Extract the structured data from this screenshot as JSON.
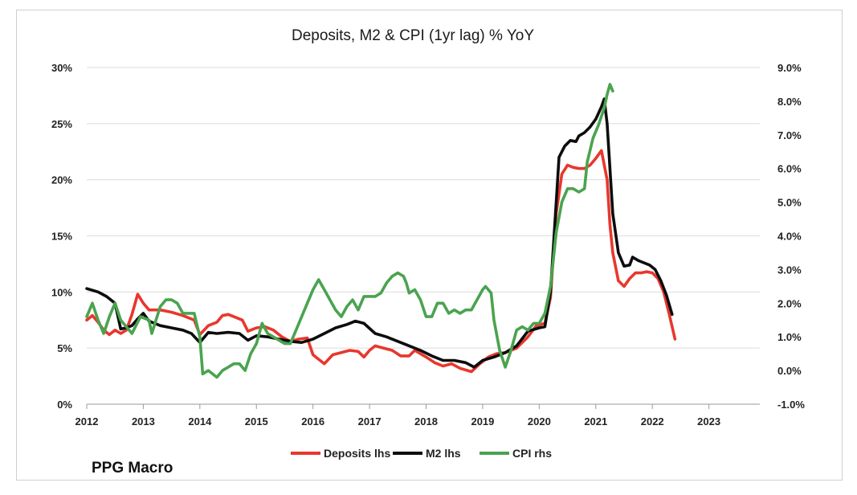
{
  "credit": "PPG Macro",
  "chart_data": {
    "type": "line",
    "title": "Deposits, M2 & CPI (1yr lag) % YoY",
    "x_ticks": [
      "2012",
      "2013",
      "2014",
      "2015",
      "2016",
      "2017",
      "2018",
      "2019",
      "2020",
      "2021",
      "2022",
      "2023"
    ],
    "xlim": [
      2012,
      2023.9
    ],
    "y_left": {
      "lim": [
        0,
        30
      ],
      "ticks": [
        "0%",
        "5%",
        "10%",
        "15%",
        "20%",
        "25%",
        "30%"
      ]
    },
    "y_right": {
      "lim": [
        -1,
        9
      ],
      "ticks": [
        "-1.0%",
        "0.0%",
        "1.0%",
        "2.0%",
        "3.0%",
        "4.0%",
        "5.0%",
        "6.0%",
        "7.0%",
        "8.0%",
        "9.0%"
      ]
    },
    "grid": true,
    "legend_position": "bottom-center",
    "series": [
      {
        "name": "Deposits lhs",
        "axis": "left",
        "color": "#e8372d",
        "points": [
          [
            2012.0,
            7.5
          ],
          [
            2012.1,
            7.9
          ],
          [
            2012.2,
            7.3
          ],
          [
            2012.3,
            6.6
          ],
          [
            2012.4,
            6.2
          ],
          [
            2012.5,
            6.6
          ],
          [
            2012.6,
            6.3
          ],
          [
            2012.7,
            6.6
          ],
          [
            2012.8,
            8.0
          ],
          [
            2012.9,
            9.8
          ],
          [
            2013.0,
            9.0
          ],
          [
            2013.1,
            8.4
          ],
          [
            2013.3,
            8.4
          ],
          [
            2013.5,
            8.2
          ],
          [
            2013.7,
            7.9
          ],
          [
            2013.9,
            7.5
          ],
          [
            2014.0,
            6.2
          ],
          [
            2014.15,
            7.0
          ],
          [
            2014.3,
            7.3
          ],
          [
            2014.4,
            7.9
          ],
          [
            2014.5,
            8.0
          ],
          [
            2014.6,
            7.8
          ],
          [
            2014.75,
            7.5
          ],
          [
            2014.85,
            6.5
          ],
          [
            2015.0,
            6.8
          ],
          [
            2015.15,
            6.9
          ],
          [
            2015.3,
            6.6
          ],
          [
            2015.45,
            6.0
          ],
          [
            2015.6,
            5.6
          ],
          [
            2015.75,
            5.8
          ],
          [
            2015.9,
            5.9
          ],
          [
            2016.0,
            4.4
          ],
          [
            2016.1,
            4.0
          ],
          [
            2016.2,
            3.6
          ],
          [
            2016.35,
            4.4
          ],
          [
            2016.5,
            4.6
          ],
          [
            2016.65,
            4.8
          ],
          [
            2016.8,
            4.7
          ],
          [
            2016.9,
            4.2
          ],
          [
            2017.0,
            4.8
          ],
          [
            2017.1,
            5.2
          ],
          [
            2017.25,
            5.0
          ],
          [
            2017.4,
            4.8
          ],
          [
            2017.55,
            4.3
          ],
          [
            2017.7,
            4.3
          ],
          [
            2017.8,
            4.8
          ],
          [
            2018.0,
            4.2
          ],
          [
            2018.15,
            3.7
          ],
          [
            2018.3,
            3.4
          ],
          [
            2018.45,
            3.6
          ],
          [
            2018.6,
            3.2
          ],
          [
            2018.8,
            2.9
          ],
          [
            2018.95,
            3.6
          ],
          [
            2019.1,
            4.2
          ],
          [
            2019.25,
            4.5
          ],
          [
            2019.4,
            4.6
          ],
          [
            2019.6,
            5.0
          ],
          [
            2019.8,
            6.0
          ],
          [
            2019.95,
            7.0
          ],
          [
            2020.1,
            7.2
          ],
          [
            2020.2,
            9.5
          ],
          [
            2020.3,
            17.0
          ],
          [
            2020.4,
            20.5
          ],
          [
            2020.5,
            21.3
          ],
          [
            2020.6,
            21.1
          ],
          [
            2020.7,
            21.0
          ],
          [
            2020.8,
            21.0
          ],
          [
            2020.9,
            21.3
          ],
          [
            2021.0,
            21.9
          ],
          [
            2021.1,
            22.6
          ],
          [
            2021.2,
            20.0
          ],
          [
            2021.25,
            16.0
          ],
          [
            2021.3,
            13.5
          ],
          [
            2021.4,
            11.0
          ],
          [
            2021.5,
            10.5
          ],
          [
            2021.6,
            11.2
          ],
          [
            2021.7,
            11.7
          ],
          [
            2021.8,
            11.7
          ],
          [
            2021.9,
            11.8
          ],
          [
            2022.0,
            11.7
          ],
          [
            2022.1,
            11.2
          ],
          [
            2022.2,
            10.0
          ],
          [
            2022.3,
            8.0
          ],
          [
            2022.4,
            5.8
          ]
        ]
      },
      {
        "name": "M2 lhs",
        "axis": "left",
        "color": "#0d0d0d",
        "points": [
          [
            2012.0,
            10.3
          ],
          [
            2012.2,
            10.0
          ],
          [
            2012.35,
            9.6
          ],
          [
            2012.5,
            9.0
          ],
          [
            2012.6,
            6.7
          ],
          [
            2012.7,
            6.8
          ],
          [
            2012.8,
            7.0
          ],
          [
            2012.9,
            7.6
          ],
          [
            2013.0,
            8.1
          ],
          [
            2013.1,
            7.4
          ],
          [
            2013.3,
            7.0
          ],
          [
            2013.5,
            6.8
          ],
          [
            2013.7,
            6.6
          ],
          [
            2013.85,
            6.3
          ],
          [
            2014.0,
            5.5
          ],
          [
            2014.15,
            6.4
          ],
          [
            2014.3,
            6.3
          ],
          [
            2014.5,
            6.4
          ],
          [
            2014.7,
            6.3
          ],
          [
            2014.85,
            5.7
          ],
          [
            2015.0,
            6.1
          ],
          [
            2015.2,
            6.0
          ],
          [
            2015.4,
            5.8
          ],
          [
            2015.6,
            5.6
          ],
          [
            2015.8,
            5.5
          ],
          [
            2016.0,
            5.8
          ],
          [
            2016.2,
            6.3
          ],
          [
            2016.4,
            6.8
          ],
          [
            2016.6,
            7.1
          ],
          [
            2016.75,
            7.4
          ],
          [
            2016.9,
            7.2
          ],
          [
            2017.1,
            6.3
          ],
          [
            2017.3,
            6.0
          ],
          [
            2017.5,
            5.6
          ],
          [
            2017.7,
            5.2
          ],
          [
            2017.9,
            4.8
          ],
          [
            2018.1,
            4.3
          ],
          [
            2018.3,
            3.9
          ],
          [
            2018.5,
            3.9
          ],
          [
            2018.7,
            3.7
          ],
          [
            2018.85,
            3.3
          ],
          [
            2019.0,
            3.9
          ],
          [
            2019.2,
            4.2
          ],
          [
            2019.4,
            4.6
          ],
          [
            2019.6,
            5.2
          ],
          [
            2019.8,
            6.5
          ],
          [
            2020.0,
            6.8
          ],
          [
            2020.1,
            6.9
          ],
          [
            2020.2,
            10.0
          ],
          [
            2020.3,
            18.0
          ],
          [
            2020.35,
            22.0
          ],
          [
            2020.45,
            23.0
          ],
          [
            2020.55,
            23.5
          ],
          [
            2020.65,
            23.4
          ],
          [
            2020.7,
            23.9
          ],
          [
            2020.8,
            24.2
          ],
          [
            2020.9,
            24.7
          ],
          [
            2021.0,
            25.4
          ],
          [
            2021.1,
            26.5
          ],
          [
            2021.15,
            27.2
          ],
          [
            2021.2,
            25.0
          ],
          [
            2021.3,
            17.0
          ],
          [
            2021.4,
            13.5
          ],
          [
            2021.5,
            12.3
          ],
          [
            2021.6,
            12.4
          ],
          [
            2021.65,
            13.1
          ],
          [
            2021.75,
            12.8
          ],
          [
            2021.85,
            12.6
          ],
          [
            2021.95,
            12.4
          ],
          [
            2022.05,
            12.0
          ],
          [
            2022.15,
            11.0
          ],
          [
            2022.25,
            9.7
          ],
          [
            2022.35,
            8.0
          ]
        ]
      },
      {
        "name": "CPI rhs",
        "axis": "right",
        "color": "#4aa34f",
        "points": [
          [
            2012.0,
            1.6
          ],
          [
            2012.1,
            2.0
          ],
          [
            2012.2,
            1.5
          ],
          [
            2012.3,
            1.1
          ],
          [
            2012.4,
            1.6
          ],
          [
            2012.5,
            2.0
          ],
          [
            2012.6,
            1.5
          ],
          [
            2012.7,
            1.3
          ],
          [
            2012.8,
            1.1
          ],
          [
            2012.95,
            1.6
          ],
          [
            2013.1,
            1.5
          ],
          [
            2013.15,
            1.1
          ],
          [
            2013.3,
            1.9
          ],
          [
            2013.4,
            2.1
          ],
          [
            2013.5,
            2.1
          ],
          [
            2013.6,
            2.0
          ],
          [
            2013.7,
            1.7
          ],
          [
            2013.9,
            1.7
          ],
          [
            2014.0,
            1.0
          ],
          [
            2014.05,
            -0.1
          ],
          [
            2014.15,
            0.0
          ],
          [
            2014.3,
            -0.2
          ],
          [
            2014.4,
            0.0
          ],
          [
            2014.5,
            0.1
          ],
          [
            2014.6,
            0.2
          ],
          [
            2014.7,
            0.2
          ],
          [
            2014.8,
            0.0
          ],
          [
            2014.9,
            0.5
          ],
          [
            2015.0,
            0.8
          ],
          [
            2015.1,
            1.4
          ],
          [
            2015.2,
            1.1
          ],
          [
            2015.3,
            1.0
          ],
          [
            2015.4,
            0.9
          ],
          [
            2015.5,
            0.8
          ],
          [
            2015.6,
            0.8
          ],
          [
            2015.7,
            1.2
          ],
          [
            2015.8,
            1.6
          ],
          [
            2015.9,
            2.0
          ],
          [
            2016.0,
            2.4
          ],
          [
            2016.1,
            2.7
          ],
          [
            2016.2,
            2.4
          ],
          [
            2016.3,
            2.1
          ],
          [
            2016.4,
            1.8
          ],
          [
            2016.5,
            1.6
          ],
          [
            2016.6,
            1.9
          ],
          [
            2016.7,
            2.1
          ],
          [
            2016.8,
            1.8
          ],
          [
            2016.9,
            2.2
          ],
          [
            2017.0,
            2.2
          ],
          [
            2017.1,
            2.2
          ],
          [
            2017.2,
            2.3
          ],
          [
            2017.3,
            2.6
          ],
          [
            2017.4,
            2.8
          ],
          [
            2017.5,
            2.9
          ],
          [
            2017.6,
            2.8
          ],
          [
            2017.65,
            2.6
          ],
          [
            2017.7,
            2.3
          ],
          [
            2017.8,
            2.4
          ],
          [
            2017.9,
            2.1
          ],
          [
            2018.0,
            1.6
          ],
          [
            2018.1,
            1.6
          ],
          [
            2018.2,
            2.0
          ],
          [
            2018.3,
            2.0
          ],
          [
            2018.4,
            1.7
          ],
          [
            2018.5,
            1.8
          ],
          [
            2018.6,
            1.7
          ],
          [
            2018.7,
            1.8
          ],
          [
            2018.8,
            1.8
          ],
          [
            2018.9,
            2.1
          ],
          [
            2019.0,
            2.4
          ],
          [
            2019.05,
            2.5
          ],
          [
            2019.15,
            2.3
          ],
          [
            2019.2,
            1.5
          ],
          [
            2019.3,
            0.6
          ],
          [
            2019.4,
            0.1
          ],
          [
            2019.5,
            0.6
          ],
          [
            2019.6,
            1.2
          ],
          [
            2019.7,
            1.3
          ],
          [
            2019.8,
            1.2
          ],
          [
            2019.9,
            1.4
          ],
          [
            2020.0,
            1.4
          ],
          [
            2020.1,
            1.7
          ],
          [
            2020.2,
            2.5
          ],
          [
            2020.3,
            4.1
          ],
          [
            2020.4,
            5.0
          ],
          [
            2020.5,
            5.4
          ],
          [
            2020.6,
            5.4
          ],
          [
            2020.7,
            5.3
          ],
          [
            2020.8,
            5.4
          ],
          [
            2020.85,
            6.2
          ],
          [
            2020.95,
            6.9
          ],
          [
            2021.05,
            7.3
          ],
          [
            2021.15,
            7.8
          ],
          [
            2021.2,
            8.2
          ],
          [
            2021.25,
            8.5
          ],
          [
            2021.3,
            8.3
          ]
        ]
      }
    ]
  }
}
